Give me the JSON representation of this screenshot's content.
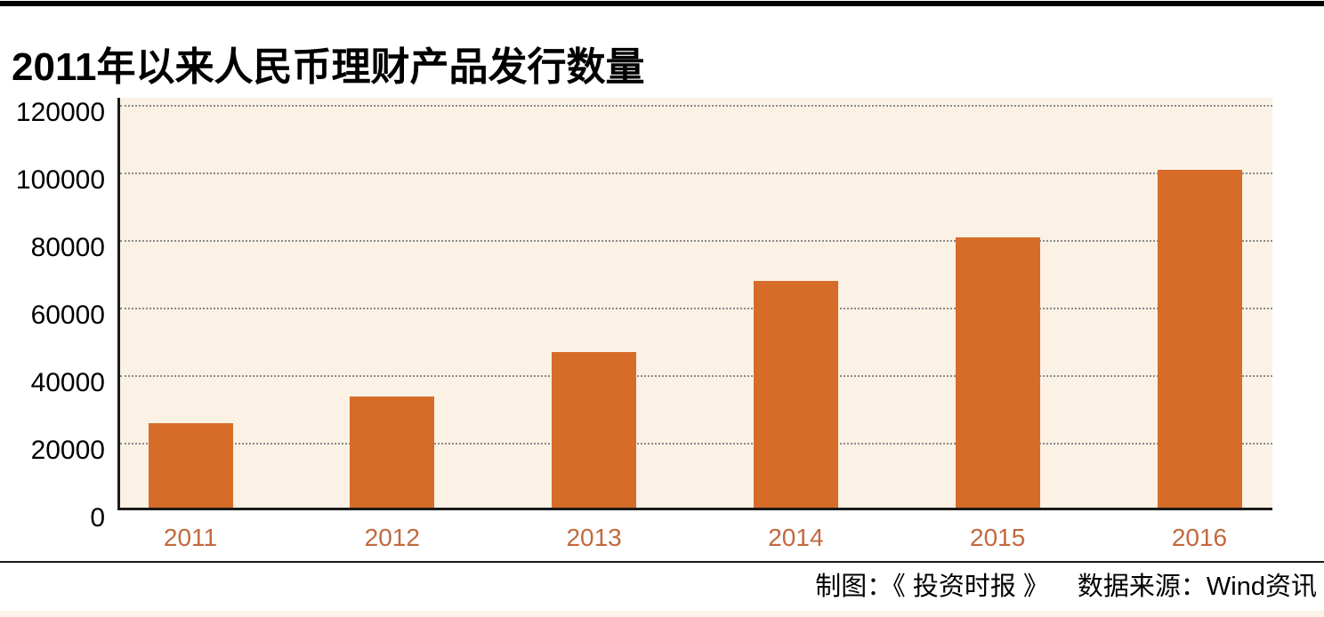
{
  "page": {
    "title": "2011年以来人民币理财产品发行数量",
    "footer": {
      "credit": "制图：《 投资时报 》",
      "source": "数据来源：Wind资讯"
    }
  },
  "chart_data": {
    "type": "bar",
    "title": "2011年以来人民币理财产品发行数量",
    "categories": [
      "2011",
      "2012",
      "2013",
      "2014",
      "2015",
      "2016"
    ],
    "values": [
      25000,
      33000,
      46000,
      67000,
      80000,
      100000
    ],
    "xlabel": "",
    "ylabel": "",
    "ylim": [
      0,
      120000
    ],
    "yticks": [
      0,
      20000,
      40000,
      60000,
      80000,
      100000,
      120000
    ],
    "grid": "horizontal-dotted",
    "legend": "none",
    "credit": "制图：《 投资时报 》",
    "source": "数据来源：Wind资讯"
  },
  "colors": {
    "bar": "#d66c28",
    "plot_background": "#fbf1e5",
    "xtick_label": "#c2693f",
    "gridline": "#8a8a8a",
    "axis": "#1a1a1a",
    "top_bar": "#000000",
    "bottom_strip": "#fcf4e8"
  }
}
